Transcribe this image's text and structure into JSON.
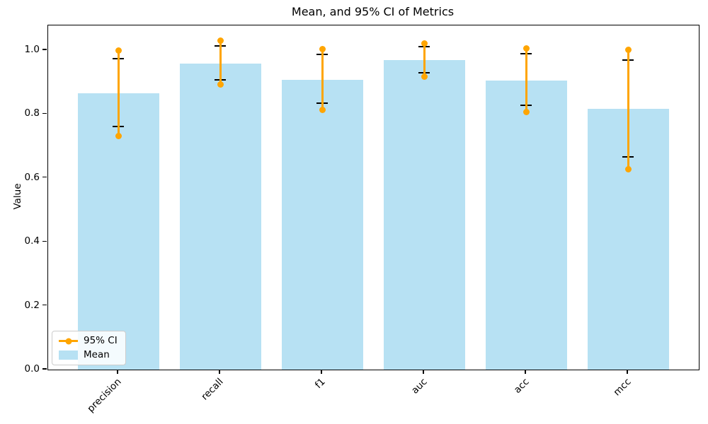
{
  "chart_data": {
    "type": "bar",
    "title": "Mean, and 95% CI of Metrics",
    "xlabel": "",
    "ylabel": "Value",
    "categories": [
      "precision",
      "recall",
      "f1",
      "auc",
      "acc",
      "mcc"
    ],
    "series": [
      {
        "name": "Mean",
        "type": "bar",
        "color": "#b7e1f3",
        "values": [
          0.864,
          0.957,
          0.908,
          0.969,
          0.906,
          0.816
        ]
      },
      {
        "name": "95% CI",
        "type": "errorbar-line-dot",
        "color": "#ffa500",
        "low": [
          0.731,
          0.892,
          0.813,
          0.917,
          0.807,
          0.627
        ],
        "high": [
          1.0,
          1.03,
          1.003,
          1.022,
          1.005,
          1.001
        ]
      },
      {
        "name": "whisker-caps",
        "type": "errorbar-caps",
        "color": "#000000",
        "low": [
          0.762,
          0.906,
          0.834,
          0.929,
          0.827,
          0.665
        ],
        "high": [
          0.974,
          1.014,
          0.986,
          1.012,
          0.989,
          0.969
        ]
      }
    ],
    "yticks": [
      "0.0",
      "0.2",
      "0.4",
      "0.6",
      "0.8",
      "1.0"
    ],
    "ytick_values": [
      0.0,
      0.2,
      0.4,
      0.6,
      0.8,
      1.0
    ],
    "ylim": [
      0.0,
      1.077
    ],
    "grid": false,
    "legend_position": "lower left",
    "legend": {
      "entries": [
        {
          "label": "95% CI",
          "marker": "line-dot",
          "color": "#ffa500"
        },
        {
          "label": "Mean",
          "marker": "patch",
          "color": "#b7e1f3"
        }
      ]
    }
  }
}
